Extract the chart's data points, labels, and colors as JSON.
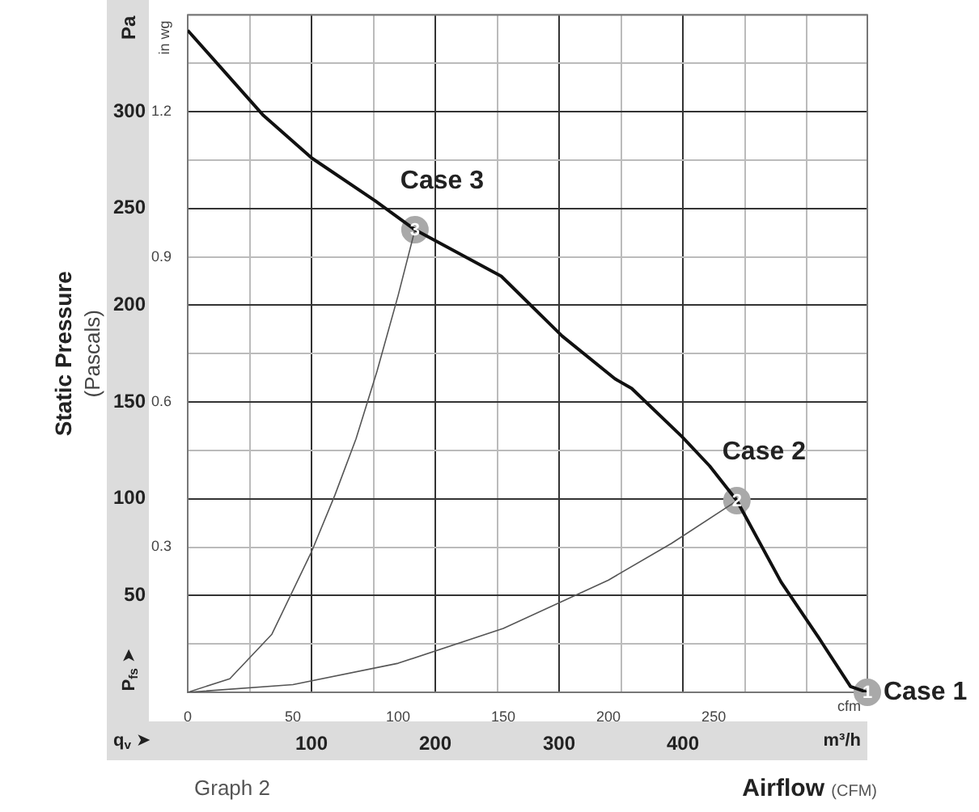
{
  "chart_data": {
    "type": "line",
    "xlabel": "Airflow (CFM)",
    "ylabel": "Static Pressure (Pascals)",
    "y2label": "in wg",
    "x2label": "m³/h",
    "xlim": [
      0,
      323
    ],
    "xticks": [
      0,
      50,
      100,
      150,
      200,
      250
    ],
    "x2lim": [
      0,
      549
    ],
    "x2ticks": [
      {
        "value": 50,
        "label": null
      },
      100,
      {
        "value": 150,
        "label": null
      },
      200,
      {
        "value": 250,
        "label": null
      },
      300,
      {
        "value": 350,
        "label": null
      },
      400,
      {
        "value": 450,
        "label": null
      },
      {
        "value": 500,
        "label": null
      }
    ],
    "ylim": [
      0,
      350
    ],
    "yticks": [
      {
        "value": 0,
        "label": null
      },
      {
        "value": 25,
        "label": null
      },
      50,
      {
        "value": 75,
        "label": null
      },
      100,
      {
        "value": 125,
        "label": null
      },
      150,
      {
        "value": 175,
        "label": null
      },
      200,
      {
        "value": 225,
        "label": null
      },
      250,
      {
        "value": 275,
        "label": null
      },
      300,
      {
        "value": 325,
        "label": null
      },
      {
        "value": 350,
        "label": null
      }
    ],
    "y2lim": [
      0,
      1.4
    ],
    "y2ticks": [
      0.3,
      0.6,
      0.9,
      1.2
    ],
    "grid": true,
    "legend": false,
    "series": [
      {
        "type": "line",
        "color": "#111111",
        "marker": "none",
        "x": [
          0,
          18,
          36,
          59,
          89,
          108,
          149,
          178,
          203,
          211,
          235,
          248,
          261,
          282,
          300,
          315,
          323
        ],
        "values": [
          342,
          320,
          298,
          276,
          254,
          239,
          215,
          184,
          162,
          157,
          132,
          117,
          99,
          57,
          28,
          3,
          0
        ]
      },
      {
        "type": "line",
        "color": "#555555",
        "marker": "none",
        "x": [
          0,
          20,
          40,
          59,
          70,
          80,
          90,
          100,
          108
        ],
        "values": [
          0,
          7,
          30,
          73,
          102,
          131,
          166,
          205,
          239
        ]
      },
      {
        "type": "line",
        "color": "#555555",
        "marker": "none",
        "x": [
          0,
          50,
          100,
          150,
          200,
          230,
          261
        ],
        "values": [
          0,
          4,
          15,
          33,
          58,
          77,
          99
        ]
      },
      {
        "type": "scatter",
        "color": "#a9a9a9",
        "marker": "circle",
        "x": [
          323,
          261,
          108
        ],
        "values": [
          0,
          99,
          239
        ]
      }
    ],
    "annotations": [
      "Pa",
      "cfm",
      "P$_{fs}$ ➤",
      "q$_{v}$ ➤",
      "Graph 2",
      {
        "text": "1",
        "x": 323,
        "y": 0
      },
      {
        "text": "2",
        "x": 261,
        "y": 99
      },
      {
        "text": "3",
        "x": 108,
        "y": 239
      },
      {
        "text": "Case 1",
        "x": 323,
        "y": 0
      },
      {
        "text": "Case 2",
        "x": 261,
        "y": 99
      },
      {
        "text": "Case 3",
        "x": 108,
        "y": 239
      }
    ]
  }
}
